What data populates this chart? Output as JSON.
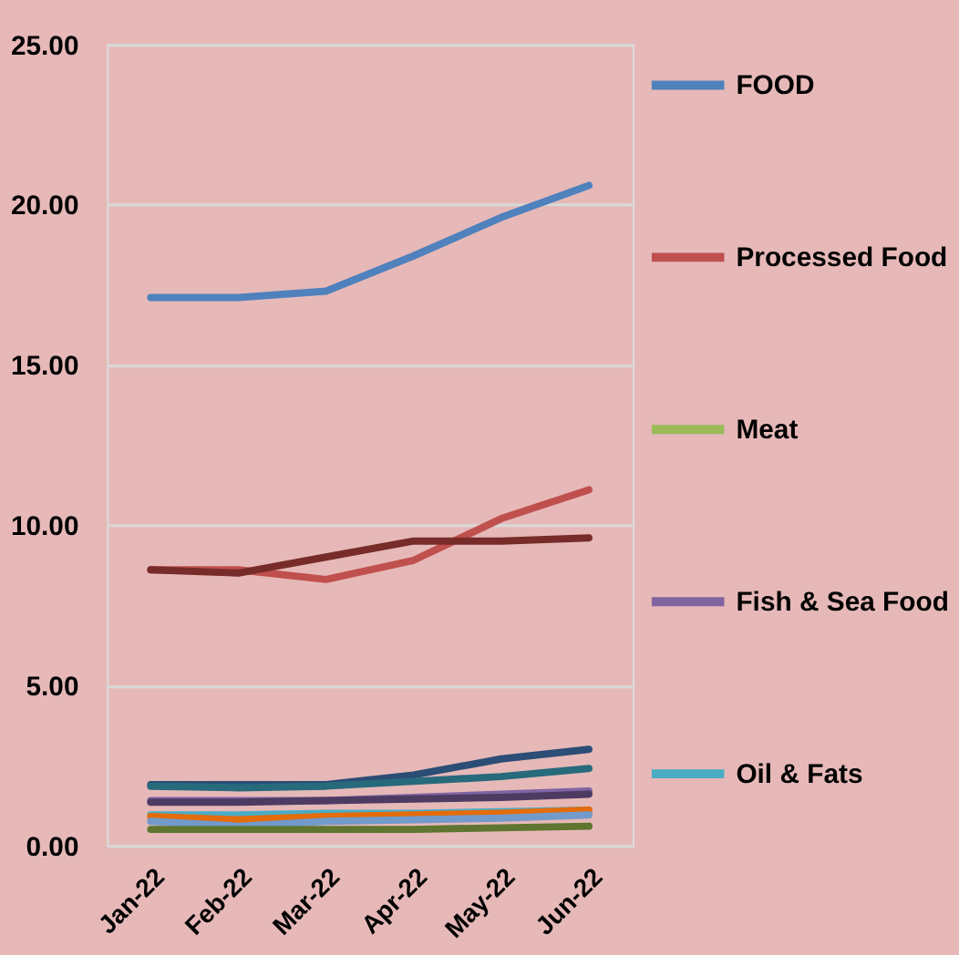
{
  "chart_data": {
    "type": "line",
    "categories": [
      "Jan-22",
      "Feb-22",
      "Mar-22",
      "Apr-22",
      "May-22",
      "Jun-22"
    ],
    "ylim": [
      0,
      25
    ],
    "yticks": [
      {
        "value": 0,
        "label": "0.00"
      },
      {
        "value": 5,
        "label": "5.00"
      },
      {
        "value": 10,
        "label": "10.00"
      },
      {
        "value": 15,
        "label": "15.00"
      },
      {
        "value": 20,
        "label": "20.00"
      },
      {
        "value": 25,
        "label": "25.00"
      }
    ],
    "grid": "y",
    "legend": "right",
    "marker": "none",
    "line_style": "solid",
    "series": [
      {
        "name": "FOOD",
        "color": "#4f81bd",
        "values": [
          17.1,
          17.1,
          17.3,
          18.4,
          19.6,
          20.6
        ]
      },
      {
        "name": "Processed Food",
        "color": "#c0504d",
        "values": [
          8.6,
          8.6,
          8.3,
          8.9,
          10.2,
          11.1
        ]
      },
      {
        "name": "Meat",
        "color": "#9bbb59",
        "values": [
          null,
          null,
          null,
          null,
          null,
          null
        ]
      },
      {
        "name": "Fish & Sea Food",
        "color": "#8064a2",
        "values": [
          1.4,
          1.4,
          1.4,
          1.5,
          1.6,
          1.7
        ]
      },
      {
        "name": "Oil & Fats",
        "color": "#4bacc6",
        "values": [
          0.95,
          0.95,
          1.0,
          1.0,
          1.05,
          1.1
        ]
      },
      {
        "color": "#772c2a",
        "values": [
          8.6,
          8.5,
          9.0,
          9.5,
          9.5,
          9.6
        ]
      },
      {
        "color": "#2c4d75",
        "values": [
          1.9,
          1.9,
          1.9,
          2.2,
          2.7,
          3.0
        ]
      },
      {
        "color": "#276a7c",
        "values": [
          1.85,
          1.8,
          1.85,
          2.0,
          2.15,
          2.4
        ]
      },
      {
        "color": "#4d3b62",
        "values": [
          1.35,
          1.35,
          1.4,
          1.45,
          1.5,
          1.6
        ]
      },
      {
        "color": "#e46c0a",
        "values": [
          0.9,
          0.8,
          0.9,
          0.95,
          1.0,
          1.1
        ]
      },
      {
        "color": "#729aca",
        "values": [
          0.75,
          0.6,
          0.75,
          0.8,
          0.85,
          0.95
        ]
      },
      {
        "color": "#5f7530",
        "values": [
          0.5,
          0.5,
          0.5,
          0.5,
          0.55,
          0.6
        ]
      }
    ]
  }
}
